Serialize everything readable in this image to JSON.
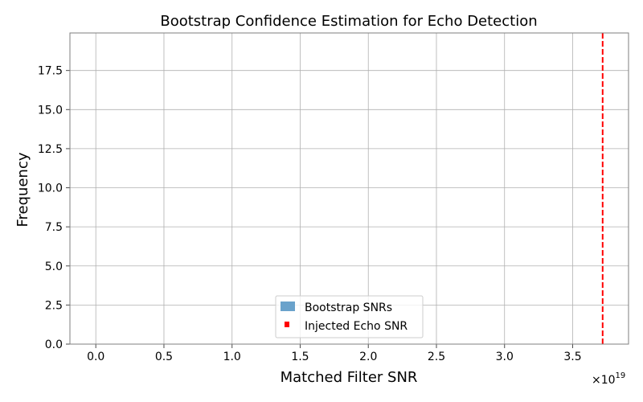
{
  "chart_data": {
    "type": "bar",
    "title": "Bootstrap Confidence Estimation for Echo Detection",
    "xlabel": "Matched Filter SNR",
    "ylabel": "Frequency",
    "x_offset_label": "×10",
    "x_offset_exponent": "19",
    "xlim": [
      -0.19,
      3.91
    ],
    "ylim": [
      0,
      19.9
    ],
    "xticks": [
      0.0,
      0.5,
      1.0,
      1.5,
      2.0,
      2.5,
      3.0,
      3.5
    ],
    "xtick_labels": [
      "0.0",
      "0.5",
      "1.0",
      "1.5",
      "2.0",
      "2.5",
      "3.0",
      "3.5"
    ],
    "yticks": [
      0.0,
      2.5,
      5.0,
      7.5,
      10.0,
      12.5,
      15.0,
      17.5
    ],
    "ytick_labels": [
      "0.0",
      "2.5",
      "5.0",
      "7.5",
      "10.0",
      "12.5",
      "15.0",
      "17.5"
    ],
    "grid": true,
    "legend_position": "lower-center",
    "series": [
      {
        "name": "Bootstrap SNRs",
        "kind": "histogram",
        "color": "#6aa2cb",
        "bins": []
      },
      {
        "name": "Injected Echo SNR",
        "kind": "vline",
        "color": "#ff0000",
        "style": "dashed",
        "x": 3.72
      }
    ]
  }
}
